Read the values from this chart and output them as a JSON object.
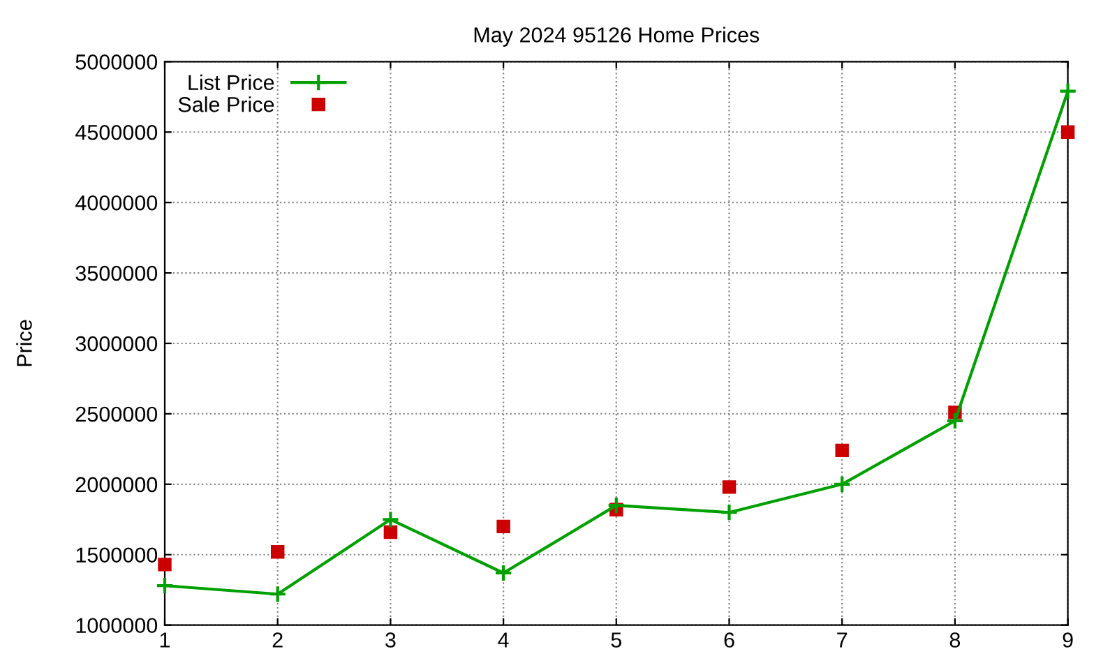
{
  "chart_data": {
    "type": "line",
    "title": "May 2024 95126 Home Prices",
    "ylabel": "Price",
    "x": [
      1,
      2,
      3,
      4,
      5,
      6,
      7,
      8,
      9
    ],
    "series": [
      {
        "name": "List Price",
        "color": "#00a000",
        "marker": "cross",
        "values": [
          1280000,
          1220000,
          1750000,
          1370000,
          1850000,
          1800000,
          2000000,
          2450000,
          4790000
        ]
      },
      {
        "name": "Sale Price",
        "type": "scatter",
        "color": "#cc0000",
        "marker": "square",
        "values": [
          1430000,
          1520000,
          1660000,
          1700000,
          1820000,
          1980000,
          2240000,
          2510000,
          4500000
        ]
      }
    ],
    "xlim": [
      1,
      9
    ],
    "xticks": [
      1,
      2,
      3,
      4,
      5,
      6,
      7,
      8,
      9
    ],
    "ylim": [
      1000000,
      5000000
    ],
    "yticks": [
      1000000,
      1500000,
      2000000,
      2500000,
      3000000,
      3500000,
      4000000,
      4500000,
      5000000
    ],
    "grid": true,
    "legend": "top left",
    "line_style": "solid"
  }
}
